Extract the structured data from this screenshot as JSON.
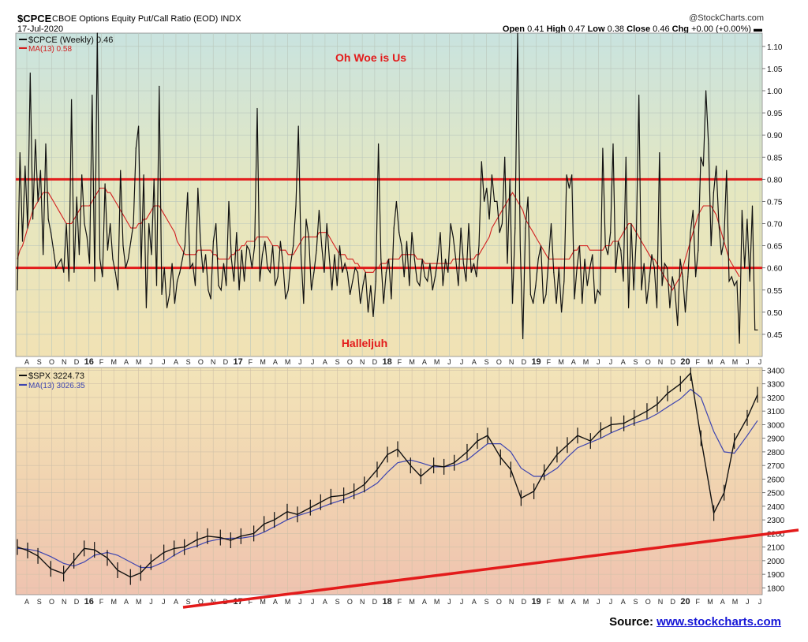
{
  "header": {
    "ticker": "$CPCE",
    "description": "CBOE Options Equity Put/Call Ratio (EOD)  INDX",
    "date": "17-Jul-2020",
    "copyright": "@StockCharts.com",
    "open_label": "Open",
    "open": "0.41",
    "high_label": "High",
    "high": "0.47",
    "low_label": "Low",
    "low": "0.38",
    "close_label": "Close",
    "close": "0.46",
    "chg_label": "Chg",
    "chg": "+0.00 (+0.00%)"
  },
  "source": {
    "label": "Source: ",
    "link": "www.stockcharts.com"
  },
  "colors": {
    "price": "#111111",
    "ma": "#d21f1f",
    "ma_spx": "#3e45b0",
    "lines": "#e31b1b",
    "annot": "#e31b1b"
  },
  "x_axis": {
    "labels": [
      "A",
      "S",
      "O",
      "N",
      "D",
      "16",
      "F",
      "M",
      "A",
      "M",
      "J",
      "J",
      "A",
      "S",
      "O",
      "N",
      "D",
      "17",
      "F",
      "M",
      "A",
      "M",
      "J",
      "J",
      "A",
      "S",
      "O",
      "N",
      "D",
      "18",
      "F",
      "M",
      "A",
      "M",
      "J",
      "J",
      "A",
      "S",
      "O",
      "N",
      "D",
      "19",
      "F",
      "M",
      "A",
      "M",
      "J",
      "J",
      "A",
      "S",
      "O",
      "N",
      "D",
      "20",
      "F",
      "M",
      "A",
      "M",
      "J",
      "J"
    ],
    "bold_labels": [
      "16",
      "17",
      "18",
      "19",
      "20"
    ]
  },
  "chart_data": [
    {
      "type": "line",
      "title": "$CPCE (Weekly) 0.46",
      "legend": [
        "$CPCE (Weekly) 0.46",
        "MA(13) 0.58"
      ],
      "legend_placement": "top-left",
      "y_axis_side": "right",
      "ylim": [
        0.4,
        1.13
      ],
      "y_ticks": [
        "0.45",
        "0.50",
        "0.55",
        "0.60",
        "0.65",
        "0.70",
        "0.75",
        "0.80",
        "0.85",
        "0.90",
        "0.95",
        "1.00",
        "1.05",
        "1.10"
      ],
      "grid": true,
      "series": [
        {
          "name": "$CPCE (Weekly)",
          "values": [
            0.55,
            0.86,
            0.66,
            0.83,
            0.69,
            1.04,
            0.71,
            0.89,
            0.75,
            0.82,
            0.63,
            0.88,
            0.71,
            0.68,
            0.64,
            0.6,
            0.61,
            0.62,
            0.59,
            0.7,
            0.57,
            0.98,
            0.59,
            0.76,
            0.63,
            0.81,
            0.7,
            0.67,
            0.61,
            0.99,
            0.57,
            1.13,
            0.62,
            0.58,
            0.79,
            0.64,
            0.7,
            0.62,
            0.59,
            0.55,
            0.82,
            0.65,
            0.6,
            0.62,
            0.66,
            0.7,
            0.87,
            0.92,
            0.6,
            0.81,
            0.51,
            0.7,
            0.63,
            0.8,
            0.56,
            1.01,
            0.54,
            0.6,
            0.51,
            0.54,
            0.61,
            0.52,
            0.57,
            0.59,
            0.62,
            0.65,
            0.77,
            0.6,
            0.61,
            0.56,
            0.78,
            0.66,
            0.59,
            0.63,
            0.55,
            0.53,
            0.66,
            0.7,
            0.56,
            0.55,
            0.61,
            0.56,
            0.75,
            0.62,
            0.57,
            0.68,
            0.55,
            0.64,
            0.57,
            0.65,
            0.64,
            0.6,
            0.65,
            0.96,
            0.57,
            0.63,
            0.66,
            0.6,
            0.59,
            0.65,
            0.56,
            0.58,
            0.66,
            0.61,
            0.53,
            0.55,
            0.61,
            0.65,
            0.74,
            0.92,
            0.63,
            0.52,
            0.71,
            0.67,
            0.55,
            0.59,
            0.64,
            0.73,
            0.65,
            0.59,
            0.7,
            0.62,
            0.55,
            0.63,
            0.56,
            0.65,
            0.59,
            0.61,
            0.59,
            0.54,
            0.57,
            0.6,
            0.59,
            0.52,
            0.56,
            0.59,
            0.5,
            0.56,
            0.49,
            0.57,
            0.88,
            0.62,
            0.52,
            0.59,
            0.62,
            0.53,
            0.69,
            0.75,
            0.68,
            0.65,
            0.58,
            0.66,
            0.56,
            0.68,
            0.62,
            0.57,
            0.56,
            0.62,
            0.58,
            0.57,
            0.61,
            0.55,
            0.58,
            0.62,
            0.68,
            0.56,
            0.62,
            0.59,
            0.7,
            0.67,
            0.62,
            0.56,
            0.69,
            0.61,
            0.57,
            0.7,
            0.59,
            0.61,
            0.58,
            0.65,
            0.84,
            0.75,
            0.78,
            0.71,
            0.81,
            0.75,
            0.75,
            0.68,
            0.7,
            0.85,
            0.61,
            0.8,
            0.52,
            0.69,
            1.13,
            0.65,
            0.44,
            0.69,
            0.76,
            0.54,
            0.52,
            0.56,
            0.62,
            0.65,
            0.52,
            0.54,
            0.62,
            0.7,
            0.59,
            0.52,
            0.6,
            0.5,
            0.57,
            0.81,
            0.78,
            0.81,
            0.53,
            0.6,
            0.65,
            0.52,
            0.62,
            0.56,
            0.6,
            0.63,
            0.52,
            0.55,
            0.54,
            0.87,
            0.65,
            0.63,
            0.68,
            0.88,
            0.59,
            0.66,
            0.64,
            0.57,
            0.85,
            0.51,
            0.7,
            0.55,
            0.67,
            0.99,
            0.55,
            0.61,
            0.52,
            0.57,
            0.63,
            0.6,
            0.51,
            0.86,
            0.56,
            0.61,
            0.6,
            0.51,
            0.58,
            0.55,
            0.47,
            0.62,
            0.58,
            0.5,
            0.58,
            0.68,
            0.73,
            0.58,
            0.64,
            0.85,
            0.83,
            1.0,
            0.88,
            0.65,
            0.77,
            0.83,
            0.7,
            0.63,
            0.66,
            0.82,
            0.57,
            0.58,
            0.56,
            0.57,
            0.43,
            0.73,
            0.6,
            0.71,
            0.57,
            0.74,
            0.46,
            0.46
          ]
        },
        {
          "name": "MA(13)",
          "values": [
            0.62,
            0.64,
            0.65,
            0.67,
            0.69,
            0.71,
            0.73,
            0.74,
            0.75,
            0.76,
            0.77,
            0.77,
            0.77,
            0.76,
            0.75,
            0.74,
            0.73,
            0.72,
            0.71,
            0.7,
            0.7,
            0.7,
            0.71,
            0.72,
            0.73,
            0.74,
            0.74,
            0.74,
            0.74,
            0.75,
            0.76,
            0.77,
            0.78,
            0.78,
            0.78,
            0.77,
            0.77,
            0.76,
            0.75,
            0.74,
            0.73,
            0.72,
            0.71,
            0.7,
            0.69,
            0.69,
            0.69,
            0.7,
            0.7,
            0.71,
            0.71,
            0.72,
            0.73,
            0.74,
            0.74,
            0.74,
            0.73,
            0.72,
            0.71,
            0.7,
            0.69,
            0.68,
            0.66,
            0.65,
            0.64,
            0.63,
            0.63,
            0.63,
            0.63,
            0.63,
            0.64,
            0.64,
            0.64,
            0.64,
            0.64,
            0.64,
            0.63,
            0.63,
            0.62,
            0.62,
            0.62,
            0.62,
            0.62,
            0.63,
            0.63,
            0.64,
            0.64,
            0.65,
            0.65,
            0.66,
            0.66,
            0.66,
            0.66,
            0.67,
            0.67,
            0.67,
            0.67,
            0.67,
            0.66,
            0.65,
            0.65,
            0.65,
            0.64,
            0.64,
            0.64,
            0.63,
            0.63,
            0.63,
            0.64,
            0.65,
            0.66,
            0.67,
            0.67,
            0.67,
            0.67,
            0.67,
            0.67,
            0.68,
            0.68,
            0.68,
            0.68,
            0.67,
            0.66,
            0.65,
            0.64,
            0.63,
            0.63,
            0.63,
            0.62,
            0.62,
            0.62,
            0.61,
            0.61,
            0.6,
            0.6,
            0.59,
            0.59,
            0.59,
            0.59,
            0.6,
            0.6,
            0.61,
            0.61,
            0.61,
            0.62,
            0.62,
            0.62,
            0.62,
            0.62,
            0.63,
            0.63,
            0.63,
            0.63,
            0.63,
            0.63,
            0.62,
            0.62,
            0.62,
            0.61,
            0.61,
            0.61,
            0.61,
            0.61,
            0.61,
            0.61,
            0.61,
            0.61,
            0.61,
            0.61,
            0.62,
            0.62,
            0.62,
            0.62,
            0.62,
            0.62,
            0.62,
            0.62,
            0.62,
            0.63,
            0.63,
            0.64,
            0.65,
            0.66,
            0.67,
            0.69,
            0.7,
            0.71,
            0.72,
            0.73,
            0.74,
            0.75,
            0.76,
            0.77,
            0.76,
            0.75,
            0.74,
            0.73,
            0.71,
            0.7,
            0.69,
            0.68,
            0.67,
            0.66,
            0.65,
            0.64,
            0.63,
            0.62,
            0.62,
            0.62,
            0.62,
            0.62,
            0.62,
            0.62,
            0.62,
            0.62,
            0.63,
            0.64,
            0.64,
            0.65,
            0.65,
            0.65,
            0.65,
            0.64,
            0.64,
            0.64,
            0.64,
            0.64,
            0.64,
            0.65,
            0.65,
            0.65,
            0.66,
            0.66,
            0.66,
            0.67,
            0.68,
            0.69,
            0.7,
            0.7,
            0.69,
            0.68,
            0.67,
            0.66,
            0.65,
            0.64,
            0.63,
            0.62,
            0.62,
            0.61,
            0.6,
            0.59,
            0.58,
            0.57,
            0.56,
            0.55,
            0.56,
            0.57,
            0.58,
            0.6,
            0.62,
            0.64,
            0.66,
            0.68,
            0.7,
            0.72,
            0.73,
            0.74,
            0.74,
            0.74,
            0.74,
            0.73,
            0.72,
            0.7,
            0.68,
            0.66,
            0.64,
            0.62,
            0.61,
            0.6,
            0.59,
            0.58
          ]
        }
      ],
      "reference_lines": [
        0.8,
        0.6
      ],
      "annotations": [
        "Oh Woe is Us",
        "Halleljuh"
      ]
    },
    {
      "type": "line",
      "title": "$SPX 3224.73",
      "legend": [
        "$SPX 3224.73",
        "MA(13) 3026.35"
      ],
      "legend_placement": "top-left",
      "y_axis_side": "right",
      "ylim": [
        1750,
        3420
      ],
      "y_ticks": [
        "1800",
        "1900",
        "2000",
        "2100",
        "2200",
        "2300",
        "2400",
        "2500",
        "2600",
        "2700",
        "2800",
        "2900",
        "3000",
        "3100",
        "3200",
        "3300",
        "3400"
      ],
      "grid": true,
      "series": [
        {
          "name": "$SPX",
          "x": [
            0,
            4,
            8,
            13,
            18,
            22,
            26,
            30,
            35,
            39,
            44,
            48,
            52,
            57,
            61,
            65,
            70,
            74,
            79,
            83,
            87,
            92,
            96,
            100,
            105,
            109,
            114,
            118,
            122,
            127,
            131,
            135,
            140,
            144,
            148,
            153,
            157,
            162,
            166,
            170,
            175,
            179,
            183,
            188,
            192,
            196,
            201,
            205,
            210,
            214,
            218,
            223,
            227,
            231,
            236,
            240,
            245,
            249,
            253,
            258,
            262,
            266,
            271,
            275,
            279,
            284,
            288
          ],
          "values": [
            2100,
            2075,
            2035,
            1940,
            1905,
            2000,
            2090,
            2080,
            2020,
            1930,
            1880,
            1910,
            1990,
            2060,
            2090,
            2100,
            2155,
            2180,
            2170,
            2150,
            2180,
            2200,
            2270,
            2300,
            2360,
            2340,
            2390,
            2430,
            2470,
            2480,
            2510,
            2560,
            2670,
            2780,
            2820,
            2700,
            2620,
            2700,
            2690,
            2720,
            2800,
            2880,
            2920,
            2760,
            2670,
            2460,
            2510,
            2650,
            2780,
            2850,
            2920,
            2880,
            2960,
            3000,
            3010,
            3050,
            3100,
            3150,
            3230,
            3300,
            3380,
            2900,
            2350,
            2500,
            2880,
            3050,
            3220
          ]
        },
        {
          "name": "MA(13)",
          "x": [
            0,
            4,
            8,
            13,
            18,
            22,
            26,
            30,
            35,
            39,
            44,
            48,
            52,
            57,
            61,
            65,
            70,
            74,
            79,
            83,
            87,
            92,
            96,
            100,
            105,
            109,
            114,
            118,
            122,
            127,
            131,
            135,
            140,
            144,
            148,
            153,
            157,
            162,
            166,
            170,
            175,
            179,
            183,
            188,
            192,
            196,
            201,
            205,
            210,
            214,
            218,
            223,
            227,
            231,
            236,
            240,
            245,
            249,
            253,
            258,
            262,
            266,
            271,
            275,
            279,
            284,
            288
          ],
          "values": [
            2090,
            2085,
            2070,
            2030,
            1980,
            1960,
            1990,
            2040,
            2060,
            2040,
            1990,
            1950,
            1950,
            1990,
            2040,
            2080,
            2110,
            2140,
            2160,
            2165,
            2165,
            2180,
            2210,
            2250,
            2300,
            2330,
            2360,
            2390,
            2420,
            2450,
            2480,
            2510,
            2570,
            2650,
            2720,
            2740,
            2720,
            2690,
            2690,
            2700,
            2740,
            2800,
            2860,
            2860,
            2800,
            2680,
            2620,
            2620,
            2680,
            2760,
            2830,
            2870,
            2900,
            2940,
            2980,
            3010,
            3040,
            3080,
            3130,
            3190,
            3260,
            3200,
            2950,
            2800,
            2790,
            2920,
            3030
          ]
        }
      ],
      "trendline": {
        "from": [
          70,
          1600
        ],
        "to": [
          300,
          2215
        ]
      }
    }
  ]
}
